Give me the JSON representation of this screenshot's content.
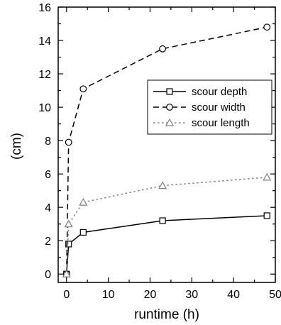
{
  "chart_data": {
    "type": "line",
    "title": "",
    "xlabel": "runtime (h)",
    "ylabel": "(cm)",
    "xlim": [
      -2,
      50
    ],
    "ylim": [
      -0.5,
      16
    ],
    "xticks": [
      0,
      10,
      20,
      30,
      40,
      50
    ],
    "yticks": [
      0,
      2,
      4,
      6,
      8,
      10,
      12,
      14,
      16
    ],
    "grid": false,
    "legend_position": "upper-right",
    "series": [
      {
        "name": "scour depth",
        "marker": "square",
        "line_style": "solid",
        "color": "#000000",
        "x": [
          0,
          0.5,
          4,
          23,
          48
        ],
        "y": [
          0,
          1.8,
          2.5,
          3.2,
          3.5
        ]
      },
      {
        "name": "scour width",
        "marker": "circle",
        "line_style": "dashed",
        "color": "#000000",
        "x": [
          0,
          0.5,
          4,
          23,
          48
        ],
        "y": [
          0,
          7.9,
          11.1,
          13.5,
          14.8
        ]
      },
      {
        "name": "scour length",
        "marker": "triangle",
        "line_style": "dotted",
        "color": "#808080",
        "x": [
          0,
          0.5,
          4,
          23,
          48
        ],
        "y": [
          0,
          3.0,
          4.3,
          5.3,
          5.8
        ]
      }
    ]
  }
}
